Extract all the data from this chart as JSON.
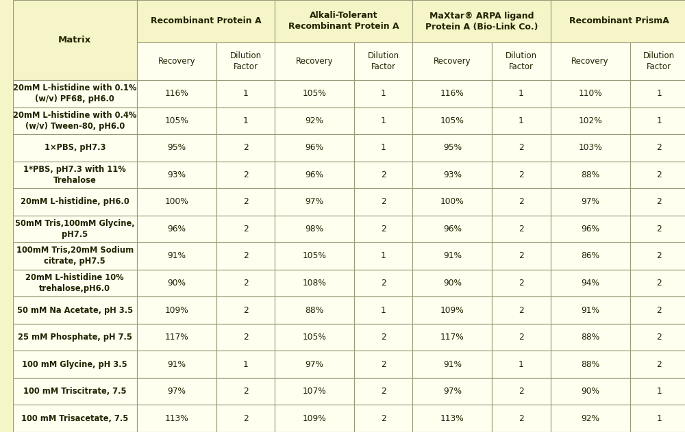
{
  "col_headers_row1": [
    "",
    "Recombinant Protein A",
    "",
    "Alkali-Tolerant\nRecombinant Protein A",
    "",
    "MaXtar® ARPA ligand\nProtein A (Bio-Link Co.)",
    "",
    "Recombinant PrismA",
    ""
  ],
  "col_headers_row2": [
    "Matrix",
    "Recovery",
    "Dilution\nFactor",
    "Recovery",
    "Dilution\nFactor",
    "Recovery",
    "Dilution\nFactor",
    "Recovery",
    "Dilution\nFactor"
  ],
  "rows": [
    [
      "20mM L-histidine with 0.1%\n(w/v) PF68, pH6.0",
      "116%",
      "1",
      "105%",
      "1",
      "116%",
      "1",
      "110%",
      "1"
    ],
    [
      "20mM L-histidine with 0.4%\n(w/v) Tween-80, pH6.0",
      "105%",
      "1",
      "92%",
      "1",
      "105%",
      "1",
      "102%",
      "1"
    ],
    [
      "1×PBS, pH7.3",
      "95%",
      "2",
      "96%",
      "1",
      "95%",
      "2",
      "103%",
      "2"
    ],
    [
      "1*PBS, pH7.3 with 11%\nTrehalose",
      "93%",
      "2",
      "96%",
      "2",
      "93%",
      "2",
      "88%",
      "2"
    ],
    [
      "20mM L-histidine, pH6.0",
      "100%",
      "2",
      "97%",
      "2",
      "100%",
      "2",
      "97%",
      "2"
    ],
    [
      "50mM Tris,100mM Glycine,\npH7.5",
      "96%",
      "2",
      "98%",
      "2",
      "96%",
      "2",
      "96%",
      "2"
    ],
    [
      "100mM Tris,20mM Sodium\ncitrate, pH7.5",
      "91%",
      "2",
      "105%",
      "1",
      "91%",
      "2",
      "86%",
      "2"
    ],
    [
      "20mM L-histidine 10%\ntrehalose,pH6.0",
      "90%",
      "2",
      "108%",
      "2",
      "90%",
      "2",
      "94%",
      "2"
    ],
    [
      "50 mM Na Acetate, pH 3.5",
      "109%",
      "2",
      "88%",
      "1",
      "109%",
      "2",
      "91%",
      "2"
    ],
    [
      "25 mM Phosphate, pH 7.5",
      "117%",
      "2",
      "105%",
      "2",
      "117%",
      "2",
      "88%",
      "2"
    ],
    [
      "100 mM Glycine, pH 3.5",
      "91%",
      "1",
      "97%",
      "2",
      "91%",
      "1",
      "88%",
      "2"
    ],
    [
      "100 mM Triscitrate, 7.5",
      "97%",
      "2",
      "107%",
      "2",
      "97%",
      "2",
      "90%",
      "1"
    ],
    [
      "100 mM Trisacetate, 7.5",
      "113%",
      "2",
      "109%",
      "2",
      "113%",
      "2",
      "92%",
      "1"
    ]
  ],
  "bg_header": "#f5f5c8",
  "bg_subheader": "#fffff0",
  "bg_row_odd": "#ffffff",
  "bg_row_even": "#fffff8",
  "border_color": "#999977",
  "text_color": "#222200",
  "header_text_color": "#222200"
}
